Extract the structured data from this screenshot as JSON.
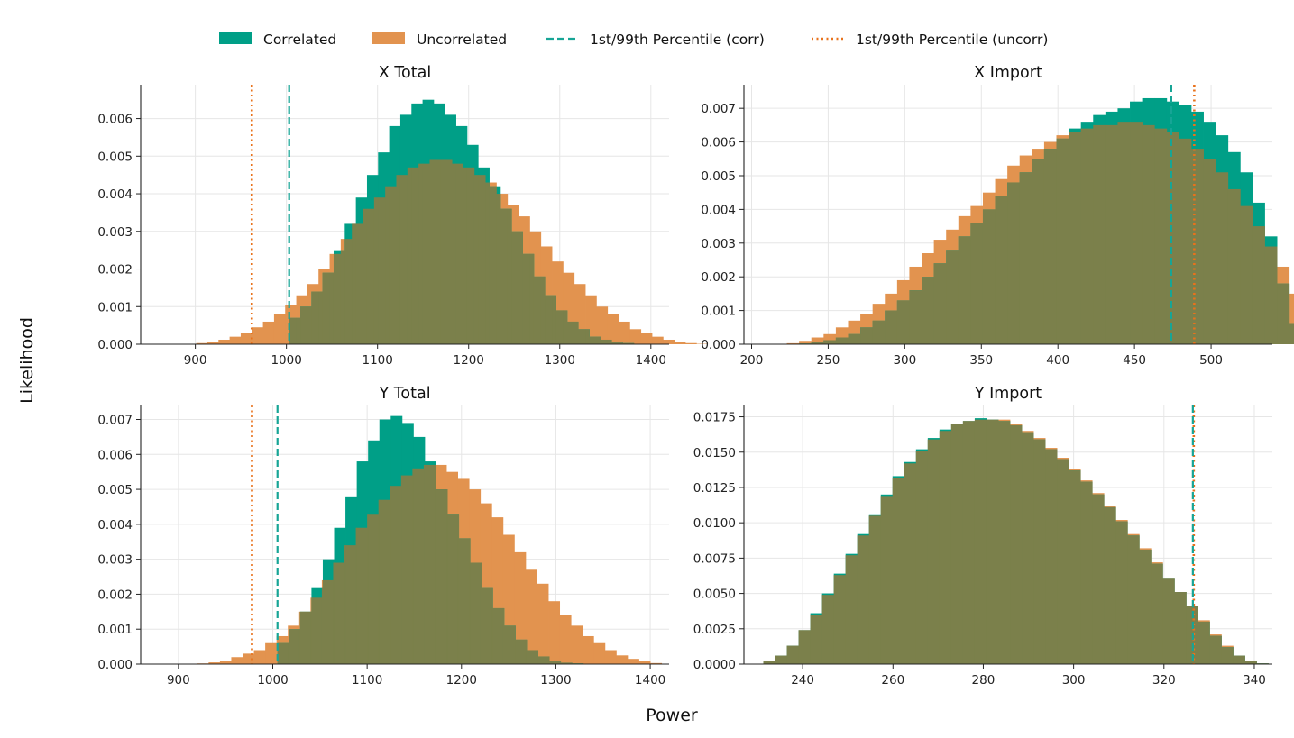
{
  "figure": {
    "xlabel": "Power",
    "ylabel": "Likelihood"
  },
  "legend": {
    "location": "top-center",
    "items": [
      {
        "label": "Correlated",
        "kind": "patch",
        "color": "#009f87"
      },
      {
        "label": "Uncorrelated",
        "kind": "patch",
        "color": "#e2934f"
      },
      {
        "label": "1st/99th Percentile (corr)",
        "kind": "dashed",
        "color": "#17a596"
      },
      {
        "label": "1st/99th Percentile (uncorr)",
        "kind": "dotted",
        "color": "#e8721c"
      }
    ]
  },
  "colors": {
    "correlated": "#009f87",
    "uncorrelated": "#e2934f",
    "corr_line": "#17a596",
    "uncorr_line": "#e8721c",
    "overlap": "#7b804b"
  },
  "chart_data": [
    {
      "type": "histogram",
      "title": "X Total",
      "xlim": [
        840,
        1420
      ],
      "ylim": [
        0,
        0.0069
      ],
      "xticks": [
        900,
        1000,
        1100,
        1200,
        1300,
        1400
      ],
      "yticks": [
        0.0,
        0.001,
        0.002,
        0.003,
        0.004,
        0.005,
        0.006
      ],
      "ytick_decimals": 3,
      "grid": true,
      "series": [
        {
          "name": "Correlated",
          "bin_start": 1003,
          "bin_width": 12.2,
          "values": [
            0.0007,
            0.001,
            0.0014,
            0.0019,
            0.0025,
            0.0032,
            0.0039,
            0.0045,
            0.0051,
            0.0058,
            0.0061,
            0.0064,
            0.0065,
            0.0064,
            0.0061,
            0.0058,
            0.0053,
            0.0047,
            0.0042,
            0.0036,
            0.003,
            0.0024,
            0.0018,
            0.0013,
            0.0009,
            0.0006,
            0.0004,
            0.0002,
            0.00012,
            6e-05,
            3e-05
          ]
        },
        {
          "name": "Uncorrelated",
          "bin_start": 901,
          "bin_width": 12.2,
          "values": [
            3e-05,
            7e-05,
            0.00012,
            0.0002,
            0.0003,
            0.00045,
            0.0006,
            0.0008,
            0.00105,
            0.0013,
            0.0016,
            0.002,
            0.0024,
            0.0028,
            0.0032,
            0.0036,
            0.0039,
            0.0042,
            0.0045,
            0.0047,
            0.0048,
            0.0049,
            0.0049,
            0.0048,
            0.0047,
            0.0045,
            0.0043,
            0.004,
            0.0037,
            0.0034,
            0.003,
            0.0026,
            0.0022,
            0.0019,
            0.0016,
            0.0013,
            0.001,
            0.0008,
            0.0006,
            0.0004,
            0.0003,
            0.0002,
            0.00012,
            6e-05,
            3e-05,
            1e-05
          ]
        },
        {
          "name": "1st/99th Percentile (corr)",
          "type": "vline",
          "x": 1003
        },
        {
          "name": "1st/99th Percentile (uncorr)",
          "type": "vline",
          "x": 962
        }
      ]
    },
    {
      "type": "histogram",
      "title": "X Import",
      "xlim": [
        195,
        540
      ],
      "ylim": [
        0,
        0.0077
      ],
      "xticks": [
        200,
        250,
        300,
        350,
        400,
        450,
        500
      ],
      "yticks": [
        0.0,
        0.001,
        0.002,
        0.003,
        0.004,
        0.005,
        0.006,
        0.007
      ],
      "ytick_decimals": 3,
      "grid": true,
      "series": [
        {
          "name": "Correlated",
          "bin_start": 231,
          "bin_width": 8.0,
          "values": [
            2e-05,
            6e-05,
            0.00012,
            0.0002,
            0.0003,
            0.0005,
            0.0007,
            0.001,
            0.0013,
            0.0016,
            0.002,
            0.0024,
            0.0028,
            0.0032,
            0.0036,
            0.004,
            0.0044,
            0.0048,
            0.0051,
            0.0055,
            0.0058,
            0.0061,
            0.0064,
            0.0066,
            0.0068,
            0.0069,
            0.007,
            0.0072,
            0.0073,
            0.0073,
            0.0072,
            0.0071,
            0.0069,
            0.0066,
            0.0062,
            0.0057,
            0.0051,
            0.0042,
            0.0032,
            0.0018,
            0.0006
          ]
        },
        {
          "name": "Uncorrelated",
          "bin_start": 223,
          "bin_width": 8.0,
          "values": [
            3e-05,
            0.0001,
            0.0002,
            0.0003,
            0.0005,
            0.0007,
            0.0009,
            0.0012,
            0.0015,
            0.0019,
            0.0023,
            0.0027,
            0.0031,
            0.0034,
            0.0038,
            0.0041,
            0.0045,
            0.0049,
            0.0053,
            0.0056,
            0.0058,
            0.006,
            0.0062,
            0.0063,
            0.0064,
            0.0065,
            0.0065,
            0.0066,
            0.0066,
            0.0065,
            0.0064,
            0.0063,
            0.0061,
            0.0058,
            0.0055,
            0.0051,
            0.0046,
            0.0041,
            0.0035,
            0.0029,
            0.0023,
            0.0015,
            0.001,
            0.0007,
            0.0004,
            0.00015,
            5e-05
          ]
        },
        {
          "name": "1st/99th Percentile (corr)",
          "type": "vline",
          "x": 474
        },
        {
          "name": "1st/99th Percentile (uncorr)",
          "type": "vline",
          "x": 489
        }
      ]
    },
    {
      "type": "histogram",
      "title": "Y Total",
      "xlim": [
        860,
        1420
      ],
      "ylim": [
        0,
        0.0074
      ],
      "xticks": [
        900,
        1000,
        1100,
        1200,
        1300,
        1400
      ],
      "yticks": [
        0.0,
        0.001,
        0.002,
        0.003,
        0.004,
        0.005,
        0.006,
        0.007
      ],
      "ytick_decimals": 3,
      "grid": true,
      "series": [
        {
          "name": "Correlated",
          "bin_start": 1005,
          "bin_width": 12.0,
          "values": [
            0.0006,
            0.001,
            0.0015,
            0.0022,
            0.003,
            0.0039,
            0.0048,
            0.0058,
            0.0064,
            0.007,
            0.0071,
            0.0069,
            0.0065,
            0.0058,
            0.005,
            0.0043,
            0.0036,
            0.0029,
            0.0022,
            0.0016,
            0.0011,
            0.0007,
            0.0004,
            0.00022,
            0.0001,
            4e-05,
            2e-05
          ]
        },
        {
          "name": "Uncorrelated",
          "bin_start": 920,
          "bin_width": 12.0,
          "values": [
            2e-05,
            5e-05,
            0.0001,
            0.0002,
            0.0003,
            0.0004,
            0.0006,
            0.0008,
            0.0011,
            0.0015,
            0.0019,
            0.0024,
            0.0029,
            0.0034,
            0.0039,
            0.0043,
            0.0047,
            0.0051,
            0.0054,
            0.0056,
            0.0057,
            0.0057,
            0.0055,
            0.0053,
            0.005,
            0.0046,
            0.0042,
            0.0037,
            0.0032,
            0.0027,
            0.0023,
            0.0018,
            0.0014,
            0.0011,
            0.0008,
            0.0006,
            0.0004,
            0.00025,
            0.00015,
            8e-05,
            3e-05
          ]
        },
        {
          "name": "1st/99th Percentile (corr)",
          "type": "vline",
          "x": 1005
        },
        {
          "name": "1st/99th Percentile (uncorr)",
          "type": "vline",
          "x": 978
        }
      ]
    },
    {
      "type": "histogram",
      "title": "Y Import",
      "xlim": [
        227,
        344
      ],
      "ylim": [
        0,
        0.0183
      ],
      "xticks": [
        240,
        260,
        280,
        300,
        320,
        340
      ],
      "yticks": [
        0.0,
        0.0025,
        0.005,
        0.0075,
        0.01,
        0.0125,
        0.015,
        0.0175
      ],
      "ytick_decimals": 4,
      "grid": true,
      "series": [
        {
          "name": "Correlated",
          "bin_start": 231.3,
          "bin_width": 2.6,
          "values": [
            0.0002,
            0.0006,
            0.0013,
            0.0024,
            0.0036,
            0.005,
            0.0064,
            0.0078,
            0.0092,
            0.0106,
            0.012,
            0.0133,
            0.0143,
            0.0152,
            0.016,
            0.0166,
            0.017,
            0.0172,
            0.0174,
            0.0173,
            0.0172,
            0.0169,
            0.0164,
            0.0159,
            0.0152,
            0.0145,
            0.0137,
            0.0129,
            0.012,
            0.0111,
            0.0101,
            0.0091,
            0.0081,
            0.0071,
            0.0061,
            0.0051,
            0.0041,
            0.003,
            0.002,
            0.0012,
            0.0006,
            0.0002,
            5e-05
          ]
        },
        {
          "name": "Uncorrelated",
          "bin_start": 231.3,
          "bin_width": 2.6,
          "values": [
            0.0002,
            0.0006,
            0.0013,
            0.0024,
            0.0035,
            0.0049,
            0.0063,
            0.0077,
            0.0091,
            0.0105,
            0.0119,
            0.0132,
            0.0142,
            0.0151,
            0.0159,
            0.0165,
            0.017,
            0.0172,
            0.0173,
            0.0173,
            0.0173,
            0.017,
            0.0165,
            0.016,
            0.0153,
            0.0146,
            0.0138,
            0.013,
            0.0121,
            0.0112,
            0.0102,
            0.0092,
            0.0082,
            0.0072,
            0.0061,
            0.0051,
            0.0041,
            0.0031,
            0.0021,
            0.0013,
            0.0006,
            0.0002,
            5e-05
          ]
        },
        {
          "name": "1st/99th Percentile (corr)",
          "type": "vline",
          "x": 326.4
        },
        {
          "name": "1st/99th Percentile (uncorr)",
          "type": "vline",
          "x": 326.6
        }
      ]
    }
  ]
}
